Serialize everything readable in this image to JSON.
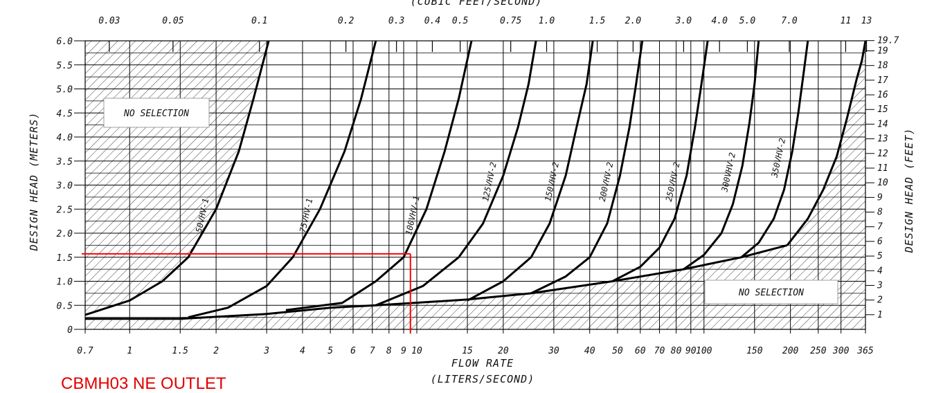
{
  "chart_data": {
    "type": "line",
    "title": "",
    "top_axis_label": "(CUBIC FEET/SECOND)",
    "xlabel": "FLOW RATE",
    "xlabel_units": "(LITERS/SECOND)",
    "ylabel_left": "DESIGN HEAD (METERS)",
    "ylabel_right": "DESIGN HEAD (FEET)",
    "x_scale": "log",
    "xlim": [
      0.7,
      365
    ],
    "ylim": [
      0,
      6.0
    ],
    "grid": true,
    "x_ticks": [
      "0.7",
      "1",
      "1.5",
      "2",
      "3",
      "4",
      "5",
      "6",
      "7",
      "8",
      "9",
      "10",
      "15",
      "20",
      "30",
      "40",
      "50",
      "60",
      "70",
      "80",
      "90",
      "100",
      "150",
      "200",
      "250",
      "300",
      "365"
    ],
    "x_ticks_values": [
      0.7,
      1,
      1.5,
      2,
      3,
      4,
      5,
      6,
      7,
      8,
      9,
      10,
      15,
      20,
      30,
      40,
      50,
      60,
      70,
      80,
      90,
      100,
      150,
      200,
      250,
      300,
      365
    ],
    "y_ticks_left": [
      "0",
      "0.5",
      "1.0",
      "1.5",
      "2.0",
      "2.5",
      "3.0",
      "3.5",
      "4.0",
      "4.5",
      "5.0",
      "5.5",
      "6.0"
    ],
    "y_ticks_left_values": [
      0,
      0.5,
      1.0,
      1.5,
      2.0,
      2.5,
      3.0,
      3.5,
      4.0,
      4.5,
      5.0,
      5.5,
      6.0
    ],
    "y_ticks_right": [
      "1",
      "2",
      "3",
      "4",
      "5",
      "6",
      "7",
      "8",
      "9",
      "10",
      "11",
      "12",
      "13",
      "14",
      "15",
      "16",
      "17",
      "18",
      "19",
      "19.7"
    ],
    "top_ticks": [
      "0.03",
      "0.05",
      "0.1",
      "0.2",
      "0.3",
      "0.4",
      "0.5",
      "0.75",
      "1.0",
      "1.5",
      "2.0",
      "3.0",
      "4.0",
      "5.0",
      "7.0",
      "11",
      "13"
    ],
    "top_ticks_values": [
      0.03,
      0.05,
      0.1,
      0.2,
      0.3,
      0.4,
      0.5,
      0.75,
      1.0,
      1.5,
      2.0,
      3.0,
      4.0,
      5.0,
      7.0,
      11,
      13
    ],
    "series": [
      {
        "name": "50VHV-1",
        "x": [
          0.7,
          1.0,
          1.3,
          1.6,
          2.0,
          2.4,
          2.7,
          3.05
        ],
        "y": [
          0.3,
          0.6,
          1.0,
          1.5,
          2.5,
          3.7,
          4.8,
          6.0
        ]
      },
      {
        "name": "75VHV-1",
        "x": [
          1.6,
          2.2,
          3.0,
          3.7,
          4.6,
          5.6,
          6.4,
          7.2
        ],
        "y": [
          0.25,
          0.45,
          0.9,
          1.5,
          2.5,
          3.7,
          4.8,
          6.0
        ]
      },
      {
        "name": "100VHV-1",
        "x": [
          3.5,
          5.5,
          7.2,
          9.0,
          10.8,
          12.5,
          14.0,
          15.5
        ],
        "y": [
          0.4,
          0.55,
          1.0,
          1.5,
          2.5,
          3.7,
          4.8,
          6.0
        ]
      },
      {
        "name": "125VHV-2",
        "x": [
          7.2,
          10.5,
          14.0,
          17.0,
          20.0,
          22.5,
          24.5,
          26.0
        ],
        "y": [
          0.5,
          0.9,
          1.5,
          2.2,
          3.2,
          4.2,
          5.1,
          6.0
        ]
      },
      {
        "name": "150VHV-2",
        "x": [
          15.0,
          20.0,
          25.0,
          29.0,
          33.0,
          36.0,
          39.0,
          41.0
        ],
        "y": [
          0.6,
          1.0,
          1.5,
          2.2,
          3.2,
          4.2,
          5.1,
          6.0
        ]
      },
      {
        "name": "200VHV-2",
        "x": [
          25.0,
          33.0,
          40.0,
          46.0,
          51.0,
          55.0,
          58.0,
          61.0
        ],
        "y": [
          0.75,
          1.1,
          1.5,
          2.2,
          3.2,
          4.2,
          5.1,
          6.0
        ]
      },
      {
        "name": "250VHV-2",
        "x": [
          48.0,
          60.0,
          70.0,
          79.0,
          87.0,
          93.0,
          98.0,
          103.0
        ],
        "y": [
          1.0,
          1.3,
          1.7,
          2.3,
          3.2,
          4.2,
          5.1,
          6.0
        ]
      },
      {
        "name": "300VHV-2",
        "x": [
          85.0,
          100.0,
          115.0,
          126.0,
          136.0,
          144.0,
          150.0,
          155.0
        ],
        "y": [
          1.25,
          1.55,
          2.0,
          2.6,
          3.4,
          4.3,
          5.1,
          6.0
        ]
      },
      {
        "name": "350VHV-2",
        "x": [
          135.0,
          155.0,
          175.0,
          190.0,
          203.0,
          213.0,
          222.0,
          230.0
        ],
        "y": [
          1.5,
          1.8,
          2.3,
          2.9,
          3.7,
          4.5,
          5.3,
          6.0
        ]
      },
      {
        "name": "",
        "x": [
          195.0,
          230.0,
          260.0,
          290.0,
          315.0,
          340.0,
          355.0,
          365.0
        ],
        "y": [
          1.75,
          2.3,
          2.9,
          3.6,
          4.4,
          5.2,
          5.6,
          6.0
        ]
      }
    ],
    "min_head_boundary": {
      "x": [
        0.7,
        1.5,
        3,
        5,
        7.2,
        15,
        25,
        48,
        85,
        135,
        195
      ],
      "y": [
        0.22,
        0.22,
        0.32,
        0.45,
        0.5,
        0.62,
        0.75,
        1.0,
        1.25,
        1.5,
        1.75
      ]
    },
    "annotations": [
      "NO SELECTION",
      "NO SELECTION"
    ],
    "operating_point": {
      "x": 9.5,
      "y": 1.57,
      "color": "#ff0000"
    }
  },
  "caption": "CBMH03 NE OUTLET",
  "colors": {
    "ink": "#000000",
    "grid": "#000000",
    "highlight": "#ff0000"
  }
}
